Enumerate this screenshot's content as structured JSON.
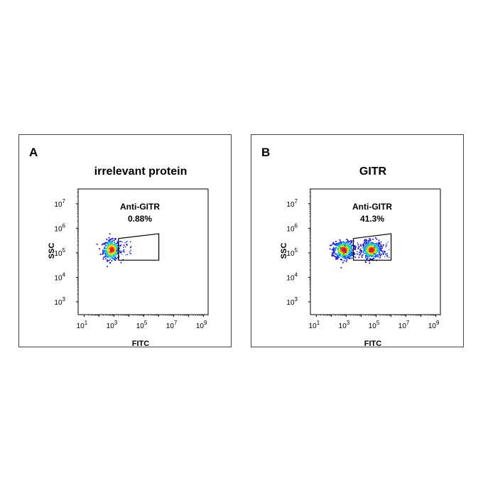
{
  "chart_data": [
    {
      "type": "scatter",
      "panel_letter": "A",
      "title": "irrelevant protein",
      "xlabel": "FITC",
      "ylabel": "SSC",
      "x_scale": "log",
      "y_scale": "log",
      "xlim": [
        4,
        2000000000
      ],
      "ylim": [
        300,
        40000000
      ],
      "x_ticks": [
        {
          "base": "10",
          "exp": "1",
          "value": 10
        },
        {
          "base": "10",
          "exp": "3",
          "value": 1000
        },
        {
          "base": "10",
          "exp": "5",
          "value": 100000
        },
        {
          "base": "10",
          "exp": "7",
          "value": 10000000
        },
        {
          "base": "10",
          "exp": "9",
          "value": 1000000000
        }
      ],
      "y_ticks": [
        {
          "base": "10",
          "exp": "3",
          "value": 1000
        },
        {
          "base": "10",
          "exp": "4",
          "value": 10000
        },
        {
          "base": "10",
          "exp": "5",
          "value": 100000
        },
        {
          "base": "10",
          "exp": "6",
          "value": 1000000
        },
        {
          "base": "10",
          "exp": "7",
          "value": 10000000
        }
      ],
      "gate": {
        "name": "Anti-GITR",
        "percent": "0.88%",
        "vertices": [
          [
            2000,
            50000
          ],
          [
            1000000,
            50000
          ],
          [
            1000000,
            600000
          ],
          [
            2000,
            380000
          ]
        ]
      },
      "populations": [
        {
          "center": [
            700,
            130000
          ],
          "spread": [
            0.28,
            0.2
          ],
          "count": 420
        }
      ],
      "sparse_points": [
        {
          "x_range": [
            1500,
            15000
          ],
          "y_range": [
            80000,
            300000
          ],
          "count": 40
        }
      ]
    },
    {
      "type": "scatter",
      "panel_letter": "B",
      "title": "GITR",
      "xlabel": "FITC",
      "ylabel": "SSC",
      "x_scale": "log",
      "y_scale": "log",
      "xlim": [
        4,
        2000000000
      ],
      "ylim": [
        300,
        40000000
      ],
      "x_ticks": [
        {
          "base": "10",
          "exp": "1",
          "value": 10
        },
        {
          "base": "10",
          "exp": "3",
          "value": 1000
        },
        {
          "base": "10",
          "exp": "5",
          "value": 100000
        },
        {
          "base": "10",
          "exp": "7",
          "value": 10000000
        },
        {
          "base": "10",
          "exp": "9",
          "value": 1000000000
        }
      ],
      "y_ticks": [
        {
          "base": "10",
          "exp": "3",
          "value": 1000
        },
        {
          "base": "10",
          "exp": "4",
          "value": 10000
        },
        {
          "base": "10",
          "exp": "5",
          "value": 100000
        },
        {
          "base": "10",
          "exp": "6",
          "value": 1000000
        },
        {
          "base": "10",
          "exp": "7",
          "value": 10000000
        }
      ],
      "gate": {
        "name": "Anti-GITR",
        "percent": "41.3%",
        "vertices": [
          [
            3000,
            50000
          ],
          [
            1000000,
            50000
          ],
          [
            1000000,
            600000
          ],
          [
            3000,
            380000
          ]
        ]
      },
      "populations": [
        {
          "center": [
            700,
            130000
          ],
          "spread": [
            0.32,
            0.18
          ],
          "count": 520
        },
        {
          "center": [
            50000,
            130000
          ],
          "spread": [
            0.3,
            0.17
          ],
          "count": 480
        }
      ],
      "sparse_points": [
        {
          "x_range": [
            100,
            800000
          ],
          "y_range": [
            60000,
            280000
          ],
          "count": 120
        }
      ]
    }
  ],
  "colors": {
    "frame": "#444444",
    "axis": "#000000",
    "gate": "#000000",
    "density": [
      "#1d12c8",
      "#1f6cf2",
      "#22c3ef",
      "#49e64a",
      "#f4e21b",
      "#f08a1c",
      "#e41f1a"
    ]
  }
}
